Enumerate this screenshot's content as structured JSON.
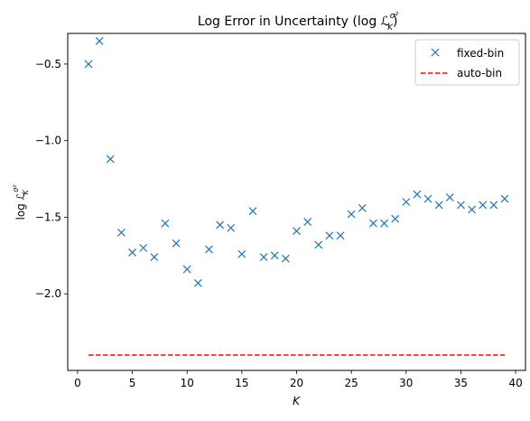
{
  "chart_data": {
    "type": "scatter",
    "title_main": "Log Error in Uncertainty (log ",
    "title_math_main": "ℒ",
    "title_math_sup": "σ²",
    "title_math_sub": "K",
    "title_close": ")",
    "xlabel": "K",
    "ylabel_prefix": "log ",
    "ylabel_math_main": "ℒ",
    "ylabel_math_sup": "σ²",
    "ylabel_math_sub": "K",
    "xlim": [
      -0.9,
      40.9
    ],
    "ylim": [
      -2.5,
      -0.3
    ],
    "xticks": [
      0,
      5,
      10,
      15,
      20,
      25,
      30,
      35,
      40
    ],
    "yticks": [
      -2.0,
      -1.5,
      -1.0,
      -0.5
    ],
    "ytick_labels": [
      "−2.0",
      "−1.5",
      "−1.0",
      "−0.5"
    ],
    "grid": false,
    "legend_position": "top-right",
    "series": [
      {
        "name": "fixed-bin",
        "marker": "x",
        "color": "#1f77b4",
        "x": [
          1,
          2,
          3,
          4,
          5,
          6,
          7,
          8,
          9,
          10,
          11,
          12,
          13,
          14,
          15,
          16,
          17,
          18,
          19,
          20,
          21,
          22,
          23,
          24,
          25,
          26,
          27,
          28,
          29,
          30,
          31,
          32,
          33,
          34,
          35,
          36,
          37,
          38,
          39
        ],
        "y": [
          -0.5,
          -0.35,
          -1.12,
          -1.6,
          -1.73,
          -1.7,
          -1.76,
          -1.54,
          -1.67,
          -1.84,
          -1.93,
          -1.71,
          -1.55,
          -1.57,
          -1.74,
          -1.46,
          -1.76,
          -1.75,
          -1.77,
          -1.59,
          -1.53,
          -1.68,
          -1.62,
          -1.62,
          -1.48,
          -1.44,
          -1.54,
          -1.54,
          -1.51,
          -1.4,
          -1.35,
          -1.38,
          -1.42,
          -1.37,
          -1.42,
          -1.45,
          -1.42,
          -1.42,
          -1.38
        ]
      },
      {
        "name": "auto-bin",
        "style": "dashed",
        "color": "#ff0000",
        "x": [
          1,
          39
        ],
        "y": [
          -2.4,
          -2.4
        ]
      }
    ]
  }
}
